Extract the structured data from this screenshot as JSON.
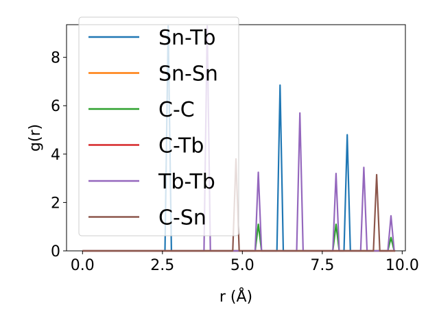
{
  "chart_data": {
    "type": "line",
    "title": "",
    "xlabel": "r (Å)",
    "ylabel": "g(r)",
    "xlim": [
      -0.5,
      10.1
    ],
    "ylim": [
      0,
      9.35
    ],
    "xticks": [
      0.0,
      2.5,
      5.0,
      7.5,
      10.0
    ],
    "xtick_labels": [
      "0.0",
      "2.5",
      "5.0",
      "7.5",
      "10.0"
    ],
    "yticks": [
      0,
      2,
      4,
      6,
      8
    ],
    "ytick_labels": [
      "0",
      "2",
      "4",
      "6",
      "8"
    ],
    "grid": false,
    "legend_position": "upper-left",
    "series": [
      {
        "name": "Sn-Tb",
        "color": "#1f77b4",
        "peaks": [
          [
            2.68,
            9.3
          ],
          [
            6.18,
            6.85
          ],
          [
            8.28,
            4.8
          ]
        ]
      },
      {
        "name": "Sn-Sn",
        "color": "#ff7f0e",
        "peaks": []
      },
      {
        "name": "C-C",
        "color": "#2ca02c",
        "peaks": [
          [
            5.5,
            1.1
          ],
          [
            7.93,
            1.1
          ],
          [
            9.65,
            0.55
          ]
        ]
      },
      {
        "name": "C-Tb",
        "color": "#d62728",
        "peaks": []
      },
      {
        "name": "Tb-Tb",
        "color": "#9467bd",
        "peaks": [
          [
            3.9,
            9.3
          ],
          [
            5.5,
            3.25
          ],
          [
            6.8,
            5.7
          ],
          [
            7.93,
            3.2
          ],
          [
            8.8,
            3.45
          ],
          [
            9.65,
            1.45
          ]
        ]
      },
      {
        "name": "C-Sn",
        "color": "#8c564b",
        "peaks": [
          [
            4.8,
            3.8
          ],
          [
            9.2,
            3.15
          ]
        ]
      }
    ]
  }
}
